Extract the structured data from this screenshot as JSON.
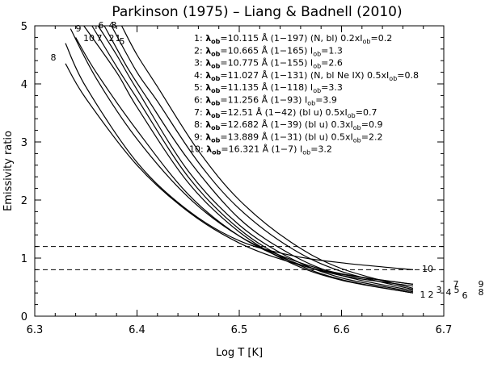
{
  "chart_data": {
    "type": "line",
    "title": "Parkinson (1975) – Liang & Badnell (2010)",
    "xlabel": "Log T [K]",
    "ylabel": "Emissivity ratio",
    "xlim": [
      6.3,
      6.7
    ],
    "ylim": [
      0,
      5
    ],
    "xticks": [
      "6.3",
      "6.4",
      "6.5",
      "6.6",
      "6.7"
    ],
    "yticks": [
      "0",
      "1",
      "2",
      "3",
      "4",
      "5"
    ],
    "reference_lines": [
      1.2,
      0.8
    ],
    "legend": [
      {
        "num": "1:",
        "lam": "10.115",
        "trans": "Å (1−197)",
        "note": "(N, bl) 0.2xI",
        "note2": "=0.2"
      },
      {
        "num": "2:",
        "lam": "10.665",
        "trans": "Å (1−165)",
        "note": "I",
        "note2": "=1.3"
      },
      {
        "num": "3:",
        "lam": "10.775",
        "trans": "Å (1−155)",
        "note": "I",
        "note2": "=2.6"
      },
      {
        "num": "4:",
        "lam": "11.027",
        "trans": "Å (1−131)",
        "note": "(N, bl Ne IX) 0.5xI",
        "note2": "=0.8"
      },
      {
        "num": "5:",
        "lam": "11.135",
        "trans": "Å (1−118)",
        "note": "I",
        "note2": "=3.3"
      },
      {
        "num": "6:",
        "lam": "11.256",
        "trans": "Å (1−93)",
        "note": "I",
        "note2": "=3.9"
      },
      {
        "num": "7:",
        "lam": "12.51",
        "trans": "Å (1−42) (bl u) 0.5xI",
        "note": "",
        "note2": "=0.7"
      },
      {
        "num": "8:",
        "lam": "12.682",
        "trans": "Å (1−39) (bl u) 0.3xI",
        "note": "",
        "note2": "=0.9"
      },
      {
        "num": "9:",
        "lam": "13.889",
        "trans": "Å (1−31) (bl u) 0.5xI",
        "note": "",
        "note2": "=2.2"
      },
      {
        "num": "10:",
        "lam": "16.321",
        "trans": "Å (1−7)",
        "note": "I",
        "note2": "=3.2"
      }
    ],
    "lambda_sub": "ob",
    "series": [
      {
        "name": "1",
        "label": "1",
        "x": [
          6.348,
          6.38,
          6.4,
          6.45,
          6.5,
          6.55,
          6.6,
          6.67
        ],
        "values": [
          5.0,
          4.2,
          3.6,
          2.3,
          1.45,
          0.92,
          0.62,
          0.4
        ]
      },
      {
        "name": "2",
        "label": "2",
        "x": [
          6.356,
          6.38,
          6.4,
          6.45,
          6.5,
          6.55,
          6.6,
          6.67
        ],
        "values": [
          5.0,
          4.3,
          3.75,
          2.4,
          1.5,
          0.95,
          0.63,
          0.4
        ]
      },
      {
        "name": "3",
        "label": "3",
        "x": [
          6.362,
          6.38,
          6.4,
          6.45,
          6.5,
          6.55,
          6.6,
          6.67
        ],
        "values": [
          5.0,
          4.5,
          3.9,
          2.5,
          1.57,
          1.0,
          0.66,
          0.42
        ]
      },
      {
        "name": "4",
        "label": "4",
        "x": [
          6.368,
          6.39,
          6.41,
          6.45,
          6.5,
          6.55,
          6.6,
          6.67
        ],
        "values": [
          5.0,
          4.3,
          3.75,
          2.7,
          1.68,
          1.07,
          0.7,
          0.44
        ]
      },
      {
        "name": "5",
        "label": "5",
        "x": [
          6.375,
          6.4,
          6.42,
          6.46,
          6.5,
          6.55,
          6.6,
          6.67
        ],
        "values": [
          5.0,
          4.2,
          3.7,
          2.65,
          1.85,
          1.18,
          0.77,
          0.46
        ]
      },
      {
        "name": "6",
        "label": "6",
        "x": [
          6.385,
          6.4,
          6.42,
          6.46,
          6.5,
          6.55,
          6.6,
          6.67
        ],
        "values": [
          5.0,
          4.5,
          3.95,
          2.85,
          2.0,
          1.28,
          0.82,
          0.48
        ]
      },
      {
        "name": "7",
        "label": "7",
        "x": [
          6.34,
          6.36,
          6.4,
          6.45,
          6.5,
          6.55,
          6.6,
          6.67
        ],
        "values": [
          4.8,
          4.2,
          3.2,
          2.1,
          1.38,
          0.95,
          0.7,
          0.52
        ]
      },
      {
        "name": "8",
        "label": "8",
        "x": [
          6.33,
          6.35,
          6.4,
          6.45,
          6.5,
          6.55,
          6.6,
          6.67
        ],
        "values": [
          4.35,
          3.75,
          2.6,
          1.8,
          1.26,
          0.93,
          0.72,
          0.55
        ]
      },
      {
        "name": "9",
        "label": "9",
        "x": [
          6.335,
          6.36,
          6.4,
          6.45,
          6.5,
          6.55,
          6.6,
          6.67
        ],
        "values": [
          4.95,
          4.1,
          3.05,
          2.05,
          1.38,
          0.98,
          0.73,
          0.55
        ]
      },
      {
        "name": "10",
        "label": "10",
        "x": [
          6.33,
          6.35,
          6.4,
          6.45,
          6.5,
          6.55,
          6.6,
          6.67
        ],
        "values": [
          4.7,
          3.95,
          2.65,
          1.82,
          1.3,
          1.05,
          0.92,
          0.8
        ]
      }
    ],
    "end_labels": [
      "10",
      "7",
      "9",
      "8",
      "1",
      "2",
      "3",
      "4",
      "5",
      "6"
    ]
  }
}
